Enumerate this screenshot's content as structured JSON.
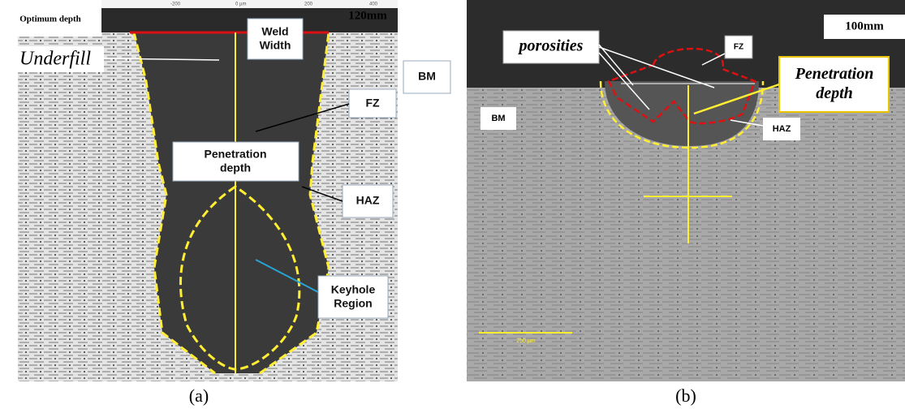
{
  "panel_a": {
    "depth_label": "Optimum depth",
    "size_label": "120mm",
    "underfill": "Underfill",
    "weld_width": "Weld Width",
    "bm": "BM",
    "fz": "FZ",
    "penetration": "Penetration depth",
    "haz": "HAZ",
    "keyhole": "Keyhole Region",
    "ruler": [
      "-200",
      "0 µm",
      "200",
      "400"
    ],
    "caption": "(a)"
  },
  "panel_b": {
    "size_label": "100mm",
    "porosities": "porosities",
    "fz": "FZ",
    "penetration": "Penetration depth",
    "bm": "BM",
    "haz": "HAZ",
    "scale_bar": "250 µm",
    "caption": "(b)"
  }
}
